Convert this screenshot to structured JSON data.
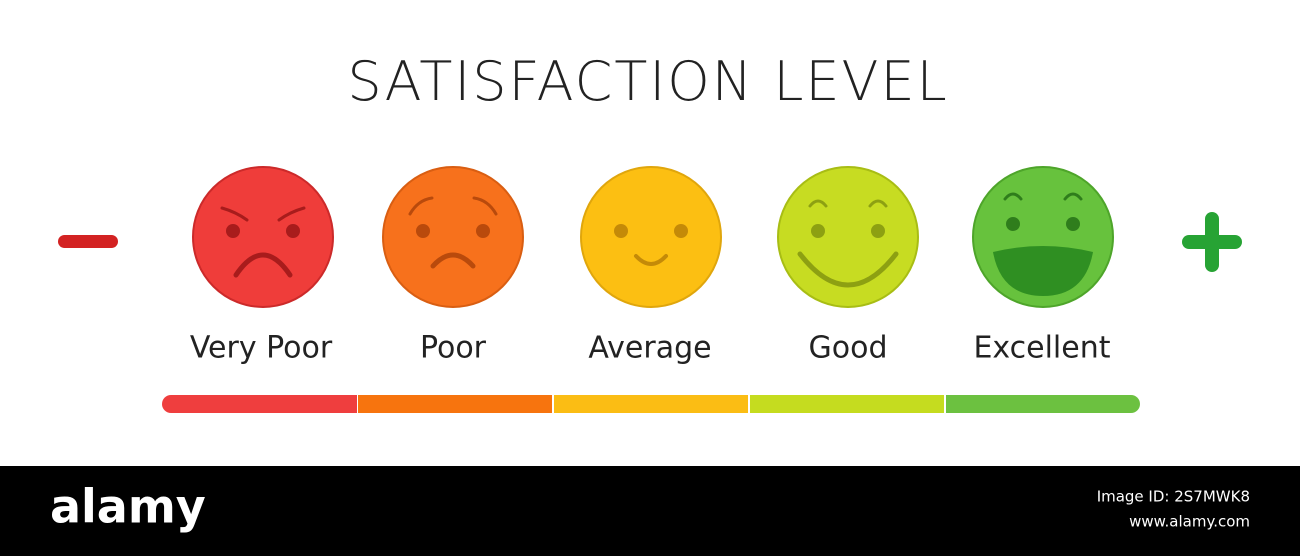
{
  "header": {
    "title": "SATISFACTION LEVEL"
  },
  "levels": [
    {
      "label": "Very Poor"
    },
    {
      "label": "Poor"
    },
    {
      "label": "Average"
    },
    {
      "label": "Good"
    },
    {
      "label": "Excellent"
    }
  ],
  "footer": {
    "brand": "alamy",
    "image_id": "Image ID: 2S7MWK8",
    "site": "www.alamy.com"
  }
}
